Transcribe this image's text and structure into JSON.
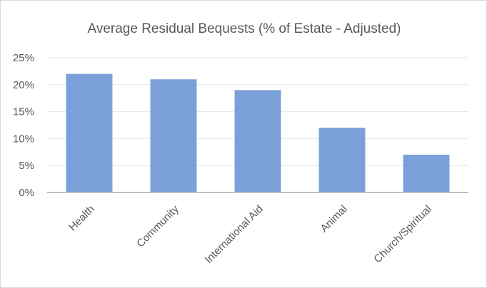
{
  "chart_data": {
    "type": "bar",
    "title": "Average Residual Bequests (% of Estate - Adjusted)",
    "categories": [
      "Health",
      "Community",
      "International Aid",
      "Animal",
      "Church/Spiritual"
    ],
    "values": [
      22,
      21,
      19,
      12,
      7
    ],
    "value_unit": "%",
    "ylim": [
      0,
      25
    ],
    "yticks": [
      "0%",
      "5%",
      "10%",
      "15%",
      "20%",
      "25%"
    ],
    "xlabel": "",
    "ylabel": "",
    "grid": true,
    "legend": "none",
    "bar_color": "#7b9fd8"
  }
}
